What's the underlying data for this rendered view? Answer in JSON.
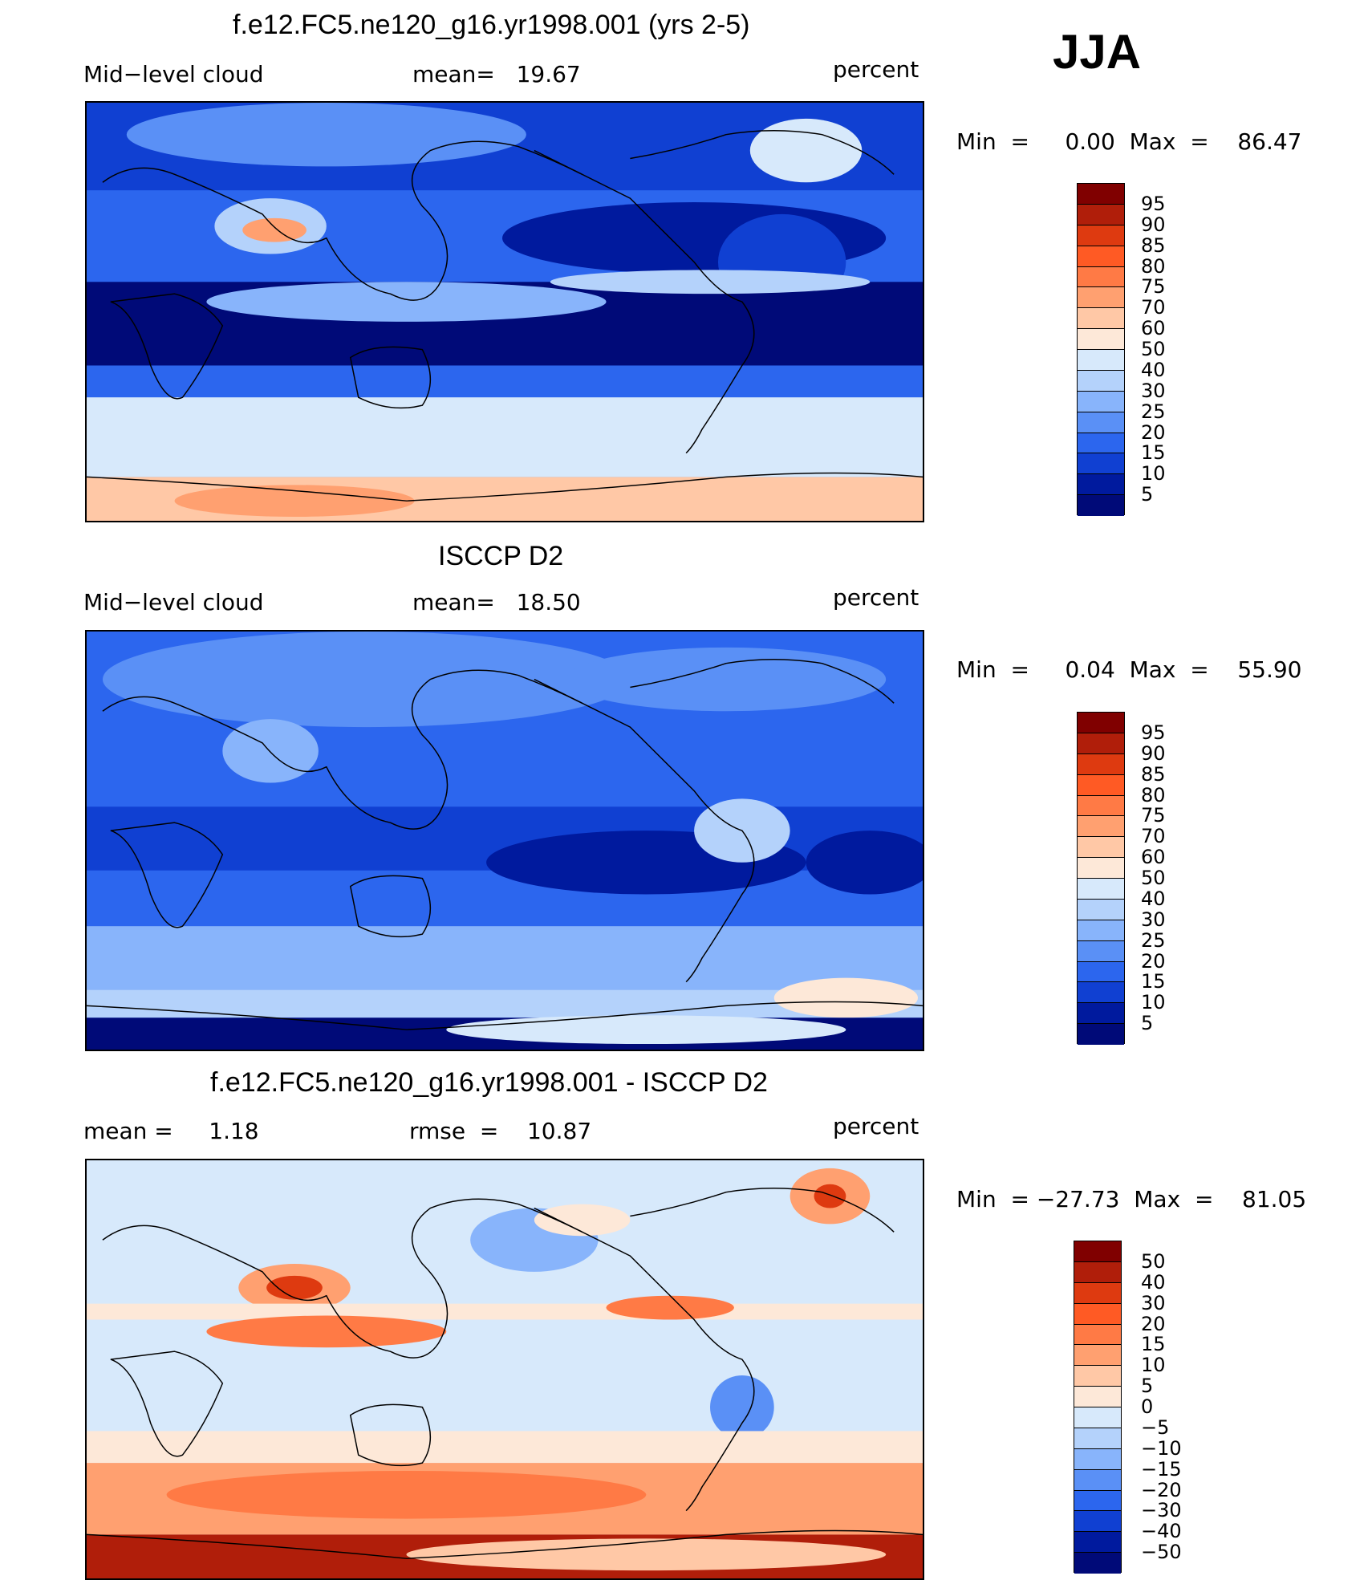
{
  "season": "JJA",
  "panels": [
    {
      "title": "f.e12.FC5.ne120_g16.yr1998.001 (yrs 2-5)",
      "left_label": "Mid−level cloud",
      "center_label": "mean=   19.67",
      "right_label": "percent",
      "minmax": "Min  =     0.00  Max  =    86.47",
      "colorbar": {
        "labels": [
          "95",
          "90",
          "85",
          "80",
          "75",
          "70",
          "60",
          "50",
          "40",
          "30",
          "25",
          "20",
          "15",
          "10",
          "5"
        ],
        "colors": [
          "#800000",
          "#b01e0a",
          "#de3a10",
          "#ff5a24",
          "#ff7a45",
          "#ffa070",
          "#ffc8a6",
          "#fde8d8",
          "#d7e9fb",
          "#b4d2fb",
          "#88b4fb",
          "#5a90f6",
          "#2c66ee",
          "#1040d2",
          "#001a9e",
          "#000a78"
        ]
      }
    },
    {
      "title": "ISCCP D2",
      "left_label": "Mid−level cloud",
      "center_label": "mean=   18.50",
      "right_label": "percent",
      "minmax": "Min  =     0.04  Max  =    55.90",
      "colorbar": {
        "labels": [
          "95",
          "90",
          "85",
          "80",
          "75",
          "70",
          "60",
          "50",
          "40",
          "30",
          "25",
          "20",
          "15",
          "10",
          "5"
        ],
        "colors": [
          "#800000",
          "#b01e0a",
          "#de3a10",
          "#ff5a24",
          "#ff7a45",
          "#ffa070",
          "#ffc8a6",
          "#fde8d8",
          "#d7e9fb",
          "#b4d2fb",
          "#88b4fb",
          "#5a90f6",
          "#2c66ee",
          "#1040d2",
          "#001a9e",
          "#000a78"
        ]
      }
    },
    {
      "title": "f.e12.FC5.ne120_g16.yr1998.001 - ISCCP D2",
      "left_label": "mean =     1.18",
      "center_label": "rmse  =    10.87",
      "right_label": "percent",
      "minmax": "Min  = −27.73  Max  =    81.05",
      "colorbar": {
        "labels": [
          "50",
          "40",
          "30",
          "20",
          "15",
          "10",
          "5",
          "0",
          "−5",
          "−10",
          "−15",
          "−20",
          "−30",
          "−40",
          "−50"
        ],
        "colors": [
          "#800000",
          "#b01e0a",
          "#de3a10",
          "#ff5a24",
          "#ff7a45",
          "#ffa070",
          "#ffc8a6",
          "#fde8d8",
          "#d7e9fb",
          "#b4d2fb",
          "#88b4fb",
          "#5a90f6",
          "#2c66ee",
          "#1040d2",
          "#001a9e",
          "#000a78"
        ]
      }
    }
  ]
}
